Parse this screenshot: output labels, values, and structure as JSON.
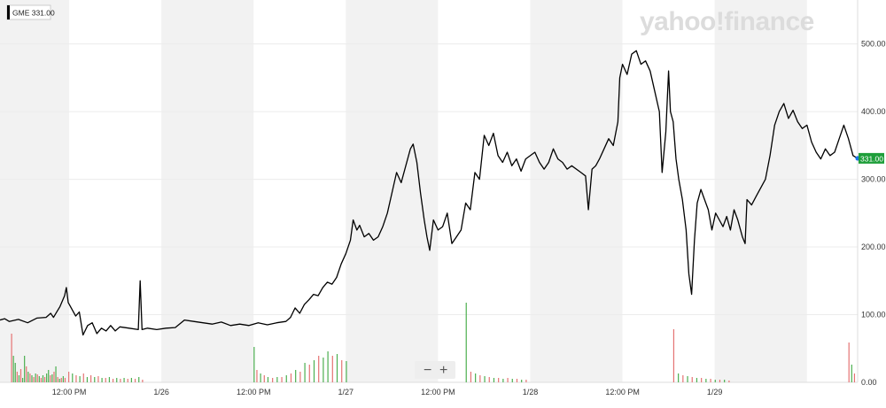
{
  "brand": {
    "watermark": "yahoo!finance"
  },
  "ticker_badge": "GME 331.00",
  "last_price_badge": "331.00",
  "zoom": {
    "minus": "−",
    "plus": "+"
  },
  "colors": {
    "line": "#000000",
    "band": "#f2f2f2",
    "grid": "#ececec",
    "vol_up": "#4caf50",
    "vol_down": "#e57373",
    "price_badge": "#1e9e3a",
    "last_dot": "#1a73e8"
  },
  "chart_data": {
    "type": "line",
    "title": "",
    "series": [
      {
        "values": [
          [
            0.0,
            92
          ],
          [
            0.05,
            94
          ],
          [
            0.1,
            90
          ],
          [
            0.2,
            93
          ],
          [
            0.3,
            88
          ],
          [
            0.4,
            95
          ],
          [
            0.5,
            96
          ],
          [
            0.55,
            102
          ],
          [
            0.58,
            96
          ],
          [
            0.62,
            105
          ],
          [
            0.65,
            112
          ],
          [
            0.7,
            128
          ],
          [
            0.72,
            140
          ],
          [
            0.74,
            118
          ],
          [
            0.78,
            108
          ],
          [
            0.82,
            98
          ],
          [
            0.86,
            104
          ],
          [
            0.9,
            70
          ],
          [
            0.95,
            84
          ],
          [
            1.0,
            88
          ],
          [
            1.05,
            72
          ],
          [
            1.1,
            80
          ],
          [
            1.15,
            76
          ],
          [
            1.2,
            84
          ],
          [
            1.25,
            76
          ],
          [
            1.3,
            82
          ],
          [
            1.4,
            80
          ],
          [
            1.5,
            78
          ],
          [
            1.52,
            150
          ],
          [
            1.54,
            78
          ],
          [
            1.6,
            80
          ],
          [
            1.7,
            78
          ],
          [
            1.8,
            80
          ],
          [
            1.9,
            81
          ],
          [
            2.0,
            92
          ],
          [
            2.1,
            90
          ],
          [
            2.2,
            88
          ],
          [
            2.3,
            86
          ],
          [
            2.4,
            89
          ],
          [
            2.5,
            84
          ],
          [
            2.6,
            86
          ],
          [
            2.7,
            84
          ],
          [
            2.8,
            88
          ],
          [
            2.9,
            85
          ],
          [
            3.0,
            88
          ],
          [
            3.1,
            90
          ],
          [
            3.15,
            96
          ],
          [
            3.2,
            110
          ],
          [
            3.25,
            102
          ],
          [
            3.3,
            115
          ],
          [
            3.35,
            122
          ],
          [
            3.4,
            130
          ],
          [
            3.45,
            128
          ],
          [
            3.5,
            140
          ],
          [
            3.55,
            148
          ],
          [
            3.6,
            145
          ],
          [
            3.65,
            155
          ],
          [
            3.7,
            175
          ],
          [
            3.75,
            190
          ],
          [
            3.8,
            210
          ],
          [
            3.83,
            240
          ],
          [
            3.87,
            225
          ],
          [
            3.9,
            232
          ],
          [
            3.95,
            215
          ],
          [
            4.0,
            220
          ],
          [
            4.05,
            210
          ],
          [
            4.1,
            215
          ],
          [
            4.15,
            230
          ],
          [
            4.2,
            250
          ],
          [
            4.25,
            280
          ],
          [
            4.3,
            310
          ],
          [
            4.35,
            295
          ],
          [
            4.4,
            320
          ],
          [
            4.45,
            345
          ],
          [
            4.48,
            352
          ],
          [
            4.52,
            325
          ],
          [
            4.56,
            280
          ],
          [
            4.6,
            240
          ],
          [
            4.63,
            215
          ],
          [
            4.66,
            195
          ],
          [
            4.7,
            240
          ],
          [
            4.75,
            225
          ],
          [
            4.8,
            230
          ],
          [
            4.85,
            250
          ],
          [
            4.9,
            205
          ],
          [
            4.95,
            215
          ],
          [
            5.0,
            225
          ],
          [
            5.05,
            265
          ],
          [
            5.1,
            255
          ],
          [
            5.15,
            310
          ],
          [
            5.2,
            300
          ],
          [
            5.25,
            365
          ],
          [
            5.3,
            350
          ],
          [
            5.35,
            368
          ],
          [
            5.4,
            335
          ],
          [
            5.45,
            325
          ],
          [
            5.5,
            340
          ],
          [
            5.55,
            320
          ],
          [
            5.6,
            330
          ],
          [
            5.65,
            312
          ],
          [
            5.7,
            330
          ],
          [
            5.8,
            340
          ],
          [
            5.85,
            325
          ],
          [
            5.9,
            315
          ],
          [
            5.95,
            325
          ],
          [
            6.0,
            345
          ],
          [
            6.05,
            330
          ],
          [
            6.1,
            325
          ],
          [
            6.15,
            315
          ],
          [
            6.2,
            320
          ],
          [
            6.3,
            310
          ],
          [
            6.35,
            305
          ],
          [
            6.38,
            255
          ],
          [
            6.42,
            315
          ],
          [
            6.46,
            320
          ],
          [
            6.5,
            330
          ],
          [
            6.55,
            345
          ],
          [
            6.6,
            360
          ],
          [
            6.65,
            350
          ],
          [
            6.7,
            385
          ],
          [
            6.72,
            450
          ],
          [
            6.75,
            470
          ],
          [
            6.8,
            455
          ],
          [
            6.85,
            485
          ],
          [
            6.9,
            490
          ],
          [
            6.95,
            470
          ],
          [
            7.0,
            475
          ],
          [
            7.05,
            460
          ],
          [
            7.1,
            430
          ],
          [
            7.15,
            400
          ],
          [
            7.18,
            310
          ],
          [
            7.22,
            370
          ],
          [
            7.25,
            460
          ],
          [
            7.27,
            400
          ],
          [
            7.3,
            385
          ],
          [
            7.33,
            330
          ],
          [
            7.36,
            300
          ],
          [
            7.4,
            270
          ],
          [
            7.44,
            225
          ],
          [
            7.47,
            160
          ],
          [
            7.5,
            130
          ],
          [
            7.53,
            210
          ],
          [
            7.56,
            265
          ],
          [
            7.6,
            285
          ],
          [
            7.64,
            270
          ],
          [
            7.68,
            255
          ],
          [
            7.72,
            225
          ],
          [
            7.76,
            250
          ],
          [
            7.8,
            240
          ],
          [
            7.84,
            230
          ],
          [
            7.88,
            245
          ],
          [
            7.92,
            225
          ],
          [
            7.96,
            255
          ],
          [
            8.0,
            240
          ],
          [
            8.05,
            215
          ],
          [
            8.08,
            205
          ],
          [
            8.1,
            270
          ],
          [
            8.15,
            262
          ],
          [
            8.2,
            275
          ],
          [
            8.3,
            300
          ],
          [
            8.35,
            335
          ],
          [
            8.4,
            380
          ],
          [
            8.45,
            400
          ],
          [
            8.5,
            412
          ],
          [
            8.55,
            390
          ],
          [
            8.6,
            402
          ],
          [
            8.65,
            385
          ],
          [
            8.7,
            375
          ],
          [
            8.75,
            380
          ],
          [
            8.8,
            355
          ],
          [
            8.85,
            340
          ],
          [
            8.9,
            330
          ],
          [
            8.95,
            345
          ],
          [
            9.0,
            335
          ],
          [
            9.05,
            340
          ],
          [
            9.1,
            360
          ],
          [
            9.15,
            380
          ],
          [
            9.2,
            360
          ],
          [
            9.25,
            335
          ],
          [
            9.3,
            331
          ]
        ]
      }
    ],
    "x_tick_labels": [
      {
        "x": 0.75,
        "label": "12:00 PM"
      },
      {
        "x": 1.75,
        "label": "1/26"
      },
      {
        "x": 2.75,
        "label": "12:00 PM"
      },
      {
        "x": 3.75,
        "label": "1/27"
      },
      {
        "x": 4.75,
        "label": "12:00 PM"
      },
      {
        "x": 5.75,
        "label": "1/28"
      },
      {
        "x": 6.75,
        "label": "12:00 PM"
      },
      {
        "x": 7.75,
        "label": "1/29"
      }
    ],
    "x_band_ranges": [
      [
        0,
        0.75
      ],
      [
        1.75,
        2.75
      ],
      [
        3.75,
        4.75
      ],
      [
        5.75,
        6.75
      ],
      [
        7.75,
        8.75
      ]
    ],
    "x_range": [
      0,
      9.3
    ],
    "y_ticks": [
      {
        "value": 0,
        "label": "0.00"
      },
      {
        "value": 100,
        "label": "100.00"
      },
      {
        "value": 200,
        "label": "200.00"
      },
      {
        "value": 300,
        "label": "300.00"
      },
      {
        "value": 400,
        "label": "400.00"
      },
      {
        "value": 500,
        "label": "500.00"
      }
    ],
    "y_range": [
      0,
      510
    ],
    "grid": true,
    "volume": {
      "y_max": 1.0,
      "bars": [
        [
          0.12,
          0.55,
          0
        ],
        [
          0.14,
          0.3,
          1
        ],
        [
          0.16,
          0.22,
          1
        ],
        [
          0.18,
          0.12,
          0
        ],
        [
          0.2,
          0.08,
          1
        ],
        [
          0.22,
          0.15,
          0
        ],
        [
          0.24,
          0.05,
          1
        ],
        [
          0.26,
          0.3,
          1
        ],
        [
          0.28,
          0.18,
          0
        ],
        [
          0.3,
          0.12,
          1
        ],
        [
          0.32,
          0.1,
          0
        ],
        [
          0.34,
          0.08,
          1
        ],
        [
          0.36,
          0.06,
          0
        ],
        [
          0.38,
          0.1,
          1
        ],
        [
          0.4,
          0.09,
          0
        ],
        [
          0.42,
          0.07,
          1
        ],
        [
          0.44,
          0.05,
          0
        ],
        [
          0.46,
          0.08,
          1
        ],
        [
          0.48,
          0.06,
          0
        ],
        [
          0.5,
          0.1,
          1
        ],
        [
          0.52,
          0.14,
          1
        ],
        [
          0.54,
          0.08,
          0
        ],
        [
          0.56,
          0.09,
          1
        ],
        [
          0.58,
          0.12,
          0
        ],
        [
          0.6,
          0.18,
          1
        ],
        [
          0.62,
          0.06,
          0
        ],
        [
          0.64,
          0.04,
          1
        ],
        [
          0.66,
          0.05,
          0
        ],
        [
          0.68,
          0.07,
          1
        ],
        [
          0.7,
          0.05,
          0
        ],
        [
          0.74,
          0.12,
          0
        ],
        [
          0.78,
          0.1,
          1
        ],
        [
          0.82,
          0.08,
          0
        ],
        [
          0.86,
          0.07,
          1
        ],
        [
          0.9,
          0.1,
          0
        ],
        [
          0.94,
          0.06,
          1
        ],
        [
          0.98,
          0.08,
          0
        ],
        [
          1.02,
          0.06,
          1
        ],
        [
          1.06,
          0.07,
          0
        ],
        [
          1.1,
          0.05,
          1
        ],
        [
          1.14,
          0.05,
          0
        ],
        [
          1.18,
          0.06,
          1
        ],
        [
          1.22,
          0.04,
          0
        ],
        [
          1.26,
          0.05,
          1
        ],
        [
          1.3,
          0.04,
          0
        ],
        [
          1.34,
          0.05,
          1
        ],
        [
          1.38,
          0.04,
          0
        ],
        [
          1.42,
          0.05,
          1
        ],
        [
          1.46,
          0.04,
          0
        ],
        [
          1.5,
          0.06,
          1
        ],
        [
          1.54,
          0.03,
          0
        ],
        [
          2.75,
          0.4,
          1
        ],
        [
          2.78,
          0.14,
          0
        ],
        [
          2.82,
          0.1,
          1
        ],
        [
          2.86,
          0.08,
          0
        ],
        [
          2.9,
          0.06,
          1
        ],
        [
          2.95,
          0.05,
          0
        ],
        [
          3.0,
          0.06,
          1
        ],
        [
          3.05,
          0.06,
          0
        ],
        [
          3.1,
          0.08,
          1
        ],
        [
          3.15,
          0.1,
          0
        ],
        [
          3.2,
          0.14,
          1
        ],
        [
          3.25,
          0.12,
          0
        ],
        [
          3.3,
          0.22,
          1
        ],
        [
          3.35,
          0.2,
          0
        ],
        [
          3.4,
          0.25,
          1
        ],
        [
          3.45,
          0.3,
          0
        ],
        [
          3.5,
          0.28,
          1
        ],
        [
          3.55,
          0.35,
          1
        ],
        [
          3.6,
          0.3,
          0
        ],
        [
          3.65,
          0.32,
          1
        ],
        [
          3.7,
          0.25,
          0
        ],
        [
          3.75,
          0.24,
          1
        ],
        [
          5.05,
          0.9,
          1
        ],
        [
          5.1,
          0.12,
          0
        ],
        [
          5.15,
          0.1,
          1
        ],
        [
          5.2,
          0.08,
          0
        ],
        [
          5.25,
          0.07,
          1
        ],
        [
          5.3,
          0.06,
          0
        ],
        [
          5.35,
          0.05,
          1
        ],
        [
          5.4,
          0.05,
          0
        ],
        [
          5.45,
          0.04,
          1
        ],
        [
          5.5,
          0.05,
          0
        ],
        [
          5.55,
          0.04,
          1
        ],
        [
          5.6,
          0.04,
          0
        ],
        [
          5.65,
          0.03,
          1
        ],
        [
          5.7,
          0.03,
          0
        ],
        [
          7.3,
          0.6,
          0
        ],
        [
          7.35,
          0.1,
          1
        ],
        [
          7.4,
          0.08,
          0
        ],
        [
          7.45,
          0.07,
          1
        ],
        [
          7.5,
          0.06,
          0
        ],
        [
          7.55,
          0.05,
          1
        ],
        [
          7.6,
          0.05,
          0
        ],
        [
          7.65,
          0.04,
          1
        ],
        [
          7.7,
          0.04,
          0
        ],
        [
          7.75,
          0.03,
          1
        ],
        [
          7.8,
          0.03,
          0
        ],
        [
          7.85,
          0.03,
          1
        ],
        [
          7.9,
          0.02,
          0
        ],
        [
          9.2,
          0.45,
          0
        ],
        [
          9.23,
          0.2,
          1
        ],
        [
          9.26,
          0.1,
          0
        ]
      ]
    }
  }
}
